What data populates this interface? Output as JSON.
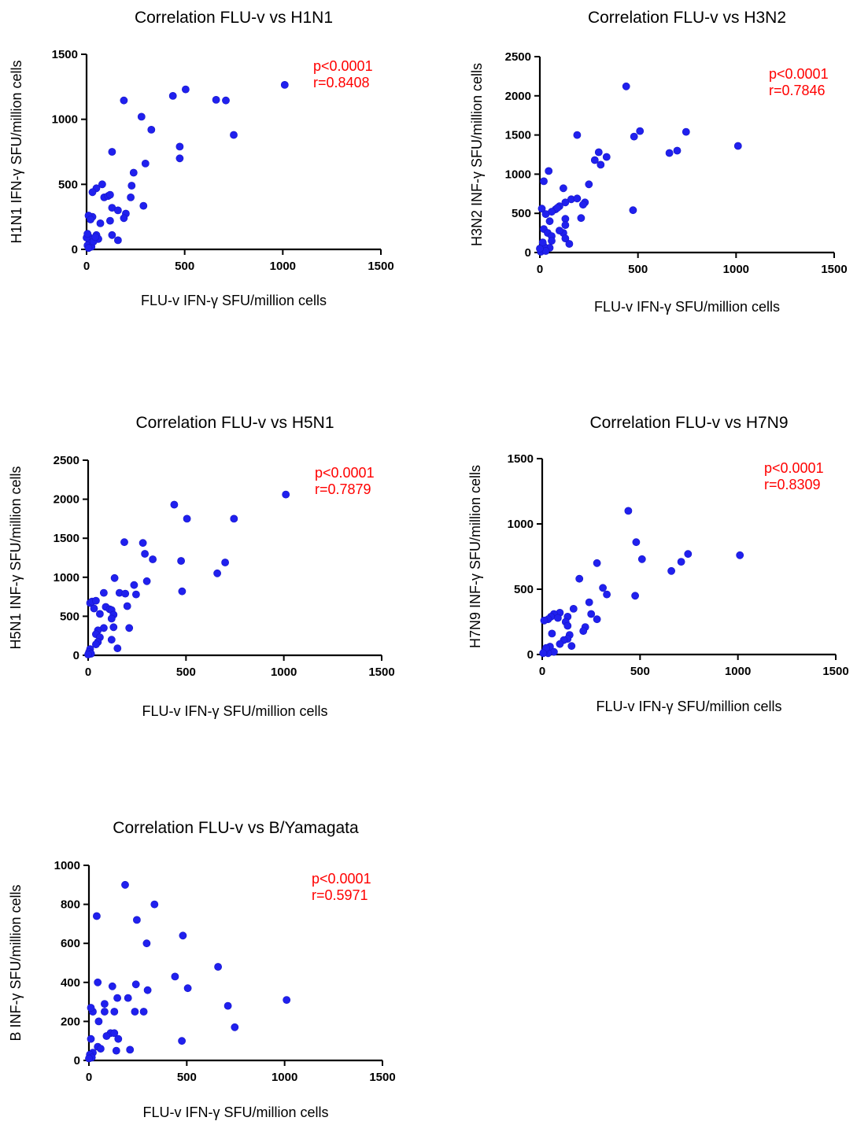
{
  "chart_data": [
    {
      "type": "scatter",
      "title": "Correlation FLU-v vs H1N1",
      "xlabel": "FLU-v IFN-γ SFU/million cells",
      "ylabel": "H1N1 IFN-γ SFU/million cells",
      "xlim": [
        0,
        1500
      ],
      "ylim": [
        0,
        1500
      ],
      "xticks": [
        0,
        500,
        1000,
        1500
      ],
      "yticks": [
        0,
        500,
        1000,
        1500
      ],
      "stats": [
        "p<0.0001",
        "r=0.8408"
      ],
      "grid": false,
      "marker_color": "#2020ee",
      "points": [
        [
          1010,
          1265
        ],
        [
          505,
          1230
        ],
        [
          440,
          1180
        ],
        [
          660,
          1150
        ],
        [
          710,
          1145
        ],
        [
          190,
          1145
        ],
        [
          280,
          1020
        ],
        [
          330,
          920
        ],
        [
          750,
          880
        ],
        [
          475,
          790
        ],
        [
          475,
          700
        ],
        [
          300,
          660
        ],
        [
          130,
          750
        ],
        [
          240,
          590
        ],
        [
          230,
          490
        ],
        [
          225,
          400
        ],
        [
          80,
          500
        ],
        [
          50,
          470
        ],
        [
          30,
          440
        ],
        [
          90,
          400
        ],
        [
          110,
          410
        ],
        [
          120,
          420
        ],
        [
          130,
          320
        ],
        [
          160,
          300
        ],
        [
          200,
          275
        ],
        [
          190,
          240
        ],
        [
          290,
          335
        ],
        [
          120,
          220
        ],
        [
          70,
          200
        ],
        [
          30,
          250
        ],
        [
          10,
          260
        ],
        [
          20,
          230
        ],
        [
          50,
          110
        ],
        [
          60,
          80
        ],
        [
          130,
          110
        ],
        [
          160,
          70
        ],
        [
          10,
          100
        ],
        [
          20,
          75
        ],
        [
          15,
          50
        ],
        [
          5,
          30
        ],
        [
          25,
          20
        ],
        [
          10,
          10
        ],
        [
          35,
          60
        ],
        [
          0,
          90
        ],
        [
          5,
          120
        ],
        [
          45,
          95
        ]
      ]
    },
    {
      "type": "scatter",
      "title": "Correlation FLU-v vs H3N2",
      "xlabel": "FLU-v IFN-γ SFU/million cells",
      "ylabel": "H3N2 INF-γ SFU/million cells",
      "xlim": [
        0,
        1500
      ],
      "ylim": [
        0,
        2500
      ],
      "xticks": [
        0,
        500,
        1000,
        1500
      ],
      "yticks": [
        0,
        500,
        1000,
        1500,
        2000,
        2500
      ],
      "stats": [
        "p<0.0001",
        "r=0.7846"
      ],
      "grid": false,
      "marker_color": "#2020ee",
      "points": [
        [
          440,
          2120
        ],
        [
          745,
          1540
        ],
        [
          510,
          1550
        ],
        [
          480,
          1480
        ],
        [
          700,
          1300
        ],
        [
          660,
          1270
        ],
        [
          1010,
          1360
        ],
        [
          190,
          1500
        ],
        [
          300,
          1280
        ],
        [
          340,
          1220
        ],
        [
          280,
          1180
        ],
        [
          310,
          1120
        ],
        [
          45,
          1040
        ],
        [
          20,
          910
        ],
        [
          250,
          870
        ],
        [
          230,
          640
        ],
        [
          220,
          610
        ],
        [
          210,
          440
        ],
        [
          475,
          540
        ],
        [
          120,
          820
        ],
        [
          160,
          680
        ],
        [
          190,
          690
        ],
        [
          130,
          640
        ],
        [
          100,
          590
        ],
        [
          80,
          550
        ],
        [
          60,
          520
        ],
        [
          90,
          570
        ],
        [
          50,
          400
        ],
        [
          10,
          560
        ],
        [
          30,
          490
        ],
        [
          20,
          300
        ],
        [
          40,
          250
        ],
        [
          60,
          210
        ],
        [
          130,
          430
        ],
        [
          130,
          350
        ],
        [
          120,
          250
        ],
        [
          130,
          180
        ],
        [
          100,
          280
        ],
        [
          60,
          150
        ],
        [
          150,
          110
        ],
        [
          50,
          60
        ],
        [
          10,
          30
        ],
        [
          5,
          10
        ],
        [
          20,
          80
        ],
        [
          15,
          130
        ],
        [
          30,
          20
        ],
        [
          0,
          50
        ]
      ]
    },
    {
      "type": "scatter",
      "title": "Correlation FLU-v vs H5N1",
      "xlabel": "FLU-v IFN-γ SFU/million cells",
      "ylabel": "H5N1 INF-γ SFU/million cells",
      "xlim": [
        0,
        1500
      ],
      "ylim": [
        0,
        2500
      ],
      "xticks": [
        0,
        500,
        1000,
        1500
      ],
      "yticks": [
        0,
        500,
        1000,
        1500,
        2000,
        2500
      ],
      "stats": [
        "p<0.0001",
        "r=0.7879"
      ],
      "grid": false,
      "marker_color": "#2020ee",
      "points": [
        [
          1010,
          2060
        ],
        [
          440,
          1930
        ],
        [
          505,
          1750
        ],
        [
          745,
          1750
        ],
        [
          185,
          1450
        ],
        [
          280,
          1440
        ],
        [
          290,
          1300
        ],
        [
          330,
          1230
        ],
        [
          475,
          1210
        ],
        [
          700,
          1190
        ],
        [
          660,
          1050
        ],
        [
          300,
          950
        ],
        [
          135,
          990
        ],
        [
          235,
          900
        ],
        [
          245,
          780
        ],
        [
          160,
          800
        ],
        [
          190,
          790
        ],
        [
          480,
          820
        ],
        [
          80,
          800
        ],
        [
          10,
          670
        ],
        [
          20,
          690
        ],
        [
          40,
          700
        ],
        [
          60,
          530
        ],
        [
          30,
          600
        ],
        [
          90,
          620
        ],
        [
          110,
          590
        ],
        [
          120,
          580
        ],
        [
          130,
          520
        ],
        [
          120,
          470
        ],
        [
          200,
          630
        ],
        [
          210,
          350
        ],
        [
          130,
          360
        ],
        [
          80,
          350
        ],
        [
          50,
          320
        ],
        [
          40,
          270
        ],
        [
          60,
          230
        ],
        [
          50,
          170
        ],
        [
          40,
          140
        ],
        [
          120,
          200
        ],
        [
          150,
          90
        ],
        [
          10,
          80
        ],
        [
          5,
          40
        ],
        [
          15,
          20
        ],
        [
          0,
          10
        ]
      ]
    },
    {
      "type": "scatter",
      "title": "Correlation FLU-v vs H7N9",
      "xlabel": "FLU-v IFN-γ SFU/million cells",
      "ylabel": "H7N9 INF-γ SFU/million cells",
      "xlim": [
        0,
        1500
      ],
      "ylim": [
        0,
        1500
      ],
      "xticks": [
        0,
        500,
        1000,
        1500
      ],
      "yticks": [
        0,
        500,
        1000,
        1500
      ],
      "stats": [
        "p<0.0001",
        "r=0.8309"
      ],
      "grid": false,
      "marker_color": "#2020ee",
      "points": [
        [
          440,
          1100
        ],
        [
          480,
          860
        ],
        [
          745,
          770
        ],
        [
          1010,
          760
        ],
        [
          710,
          710
        ],
        [
          510,
          730
        ],
        [
          660,
          640
        ],
        [
          280,
          700
        ],
        [
          190,
          580
        ],
        [
          310,
          510
        ],
        [
          330,
          460
        ],
        [
          475,
          450
        ],
        [
          240,
          400
        ],
        [
          250,
          310
        ],
        [
          220,
          210
        ],
        [
          210,
          180
        ],
        [
          280,
          270
        ],
        [
          160,
          350
        ],
        [
          90,
          320
        ],
        [
          60,
          310
        ],
        [
          45,
          290
        ],
        [
          30,
          270
        ],
        [
          10,
          260
        ],
        [
          80,
          280
        ],
        [
          130,
          290
        ],
        [
          120,
          250
        ],
        [
          130,
          220
        ],
        [
          140,
          150
        ],
        [
          130,
          120
        ],
        [
          110,
          110
        ],
        [
          90,
          80
        ],
        [
          150,
          65
        ],
        [
          50,
          160
        ],
        [
          40,
          60
        ],
        [
          60,
          20
        ],
        [
          30,
          10
        ],
        [
          10,
          20
        ],
        [
          20,
          50
        ],
        [
          5,
          10
        ]
      ]
    },
    {
      "type": "scatter",
      "title": "Correlation FLU-v vs B/Yamagata",
      "xlabel": "FLU-v IFN-γ SFU/million cells",
      "ylabel": "B INF-γ SFU/million cells",
      "xlim": [
        0,
        1500
      ],
      "ylim": [
        0,
        1000
      ],
      "xticks": [
        0,
        500,
        1000,
        1500
      ],
      "yticks": [
        0,
        200,
        400,
        600,
        800,
        1000
      ],
      "stats": [
        "p<0.0001",
        "r=0.5971"
      ],
      "grid": false,
      "marker_color": "#2020ee",
      "points": [
        [
          185,
          900
        ],
        [
          335,
          800
        ],
        [
          40,
          740
        ],
        [
          245,
          720
        ],
        [
          480,
          640
        ],
        [
          295,
          600
        ],
        [
          660,
          480
        ],
        [
          440,
          430
        ],
        [
          505,
          370
        ],
        [
          300,
          360
        ],
        [
          1010,
          310
        ],
        [
          710,
          280
        ],
        [
          745,
          170
        ],
        [
          475,
          100
        ],
        [
          45,
          400
        ],
        [
          120,
          380
        ],
        [
          240,
          390
        ],
        [
          200,
          320
        ],
        [
          145,
          320
        ],
        [
          80,
          290
        ],
        [
          280,
          250
        ],
        [
          130,
          250
        ],
        [
          235,
          250
        ],
        [
          80,
          250
        ],
        [
          20,
          250
        ],
        [
          10,
          270
        ],
        [
          50,
          200
        ],
        [
          110,
          140
        ],
        [
          130,
          140
        ],
        [
          90,
          125
        ],
        [
          150,
          110
        ],
        [
          210,
          55
        ],
        [
          140,
          50
        ],
        [
          45,
          70
        ],
        [
          60,
          60
        ],
        [
          10,
          110
        ],
        [
          20,
          40
        ],
        [
          5,
          30
        ],
        [
          15,
          15
        ],
        [
          0,
          10
        ]
      ]
    }
  ]
}
